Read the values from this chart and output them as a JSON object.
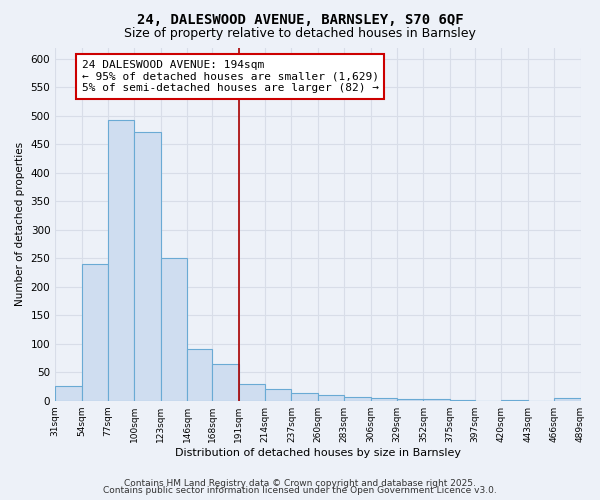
{
  "title": "24, DALESWOOD AVENUE, BARNSLEY, S70 6QF",
  "subtitle": "Size of property relative to detached houses in Barnsley",
  "xlabel": "Distribution of detached houses by size in Barnsley",
  "ylabel": "Number of detached properties",
  "footer_line1": "Contains HM Land Registry data © Crown copyright and database right 2025.",
  "footer_line2": "Contains public sector information licensed under the Open Government Licence v3.0.",
  "bins": [
    31,
    54,
    77,
    100,
    123,
    146,
    168,
    191,
    214,
    237,
    260,
    283,
    306,
    329,
    352,
    375,
    397,
    420,
    443,
    466,
    489
  ],
  "counts": [
    25,
    240,
    493,
    472,
    250,
    90,
    65,
    30,
    20,
    14,
    10,
    7,
    4,
    3,
    3,
    1,
    0,
    1,
    0,
    5
  ],
  "bar_facecolor": "#cfddf0",
  "bar_edgecolor": "#6aaad4",
  "vline_x": 191,
  "vline_color": "#aa0000",
  "annotation_title": "24 DALESWOOD AVENUE: 194sqm",
  "annotation_line1": "← 95% of detached houses are smaller (1,629)",
  "annotation_line2": "5% of semi-detached houses are larger (82) →",
  "ylim": [
    0,
    620
  ],
  "yticks": [
    0,
    50,
    100,
    150,
    200,
    250,
    300,
    350,
    400,
    450,
    500,
    550,
    600
  ],
  "background_color": "#edf1f8",
  "grid_color": "#d8dde8",
  "title_fontsize": 10,
  "subtitle_fontsize": 9,
  "annotation_fontsize": 8,
  "axis_fontsize": 7.5,
  "footer_fontsize": 6.5
}
